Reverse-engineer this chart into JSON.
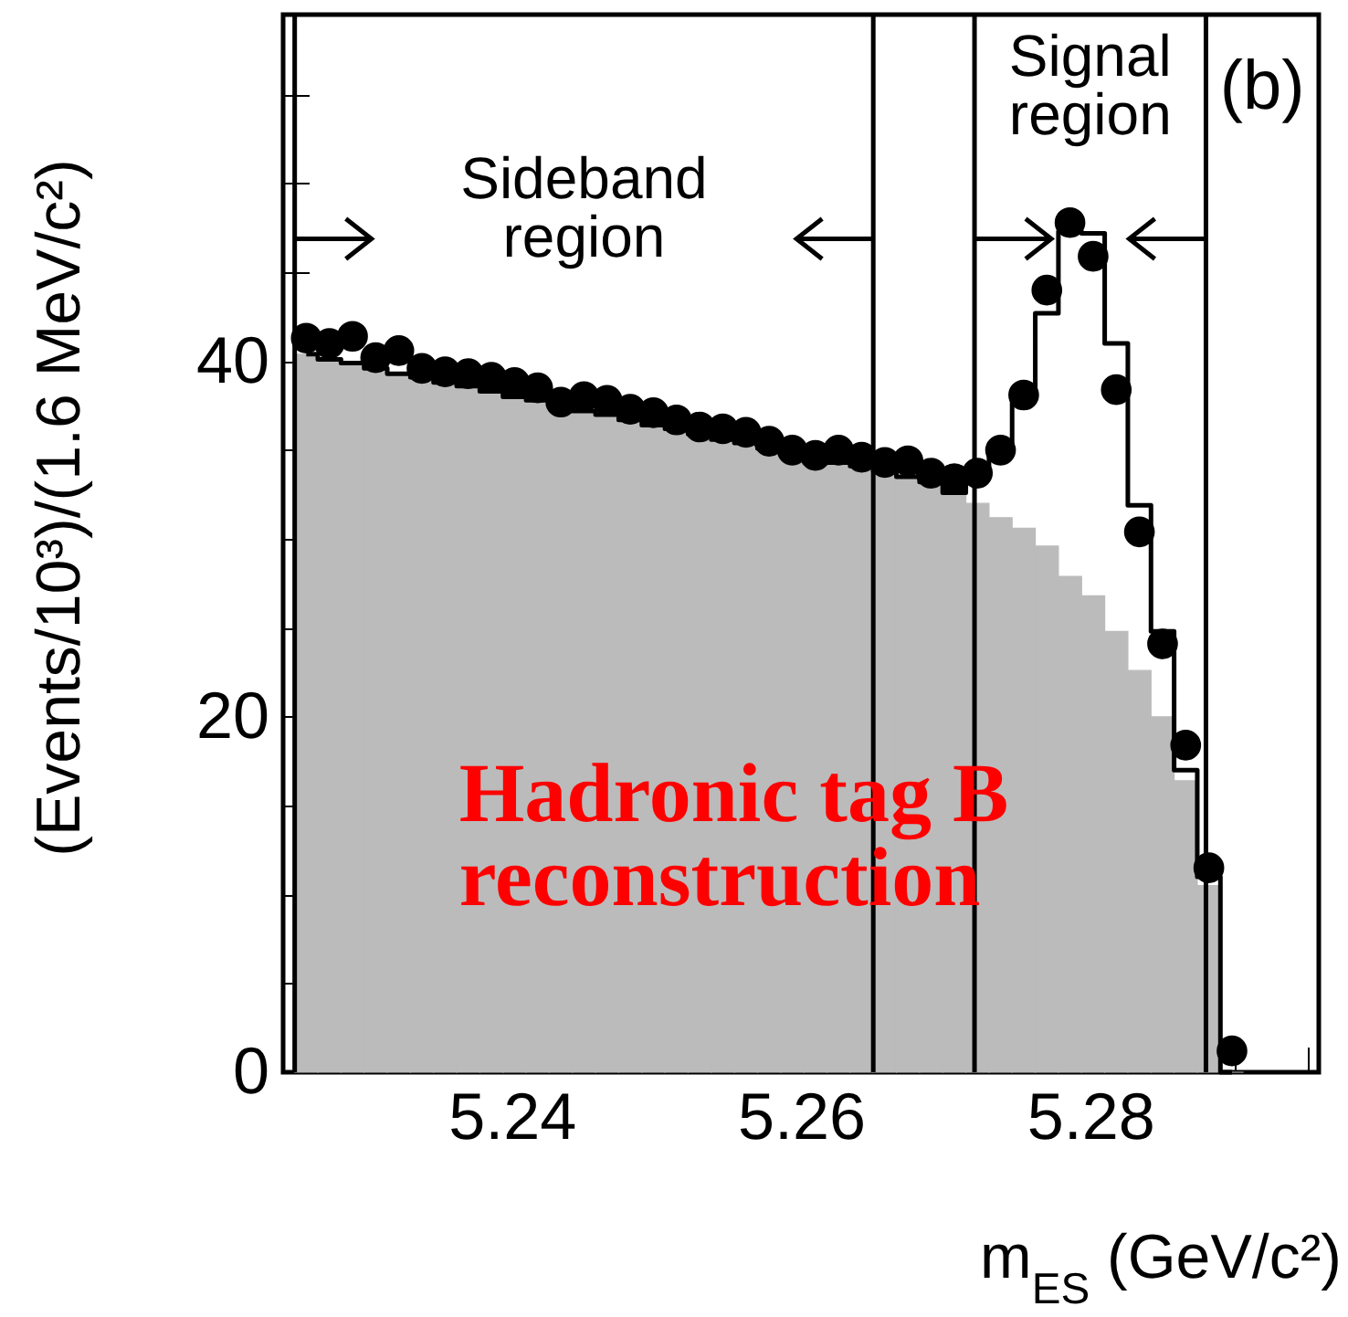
{
  "chart_data": {
    "type": "histogram",
    "xlabel": "m$_{ES}$ (GeV/c²)",
    "ylabel": "(Events/10³)/(1.6 MeV/c²)",
    "xlim": [
      5.2242,
      5.2958
    ],
    "ylim": [
      0,
      59.5
    ],
    "xticks": [
      {
        "value": 5.23,
        "label": null
      },
      {
        "value": 5.235,
        "label": null
      },
      5.24,
      {
        "value": 5.245,
        "label": null
      },
      {
        "value": 5.25,
        "label": null
      },
      {
        "value": 5.255,
        "label": null
      },
      5.26,
      {
        "value": 5.265,
        "label": null
      },
      {
        "value": 5.27,
        "label": null
      },
      {
        "value": 5.275,
        "label": null
      },
      5.28,
      {
        "value": 5.285,
        "label": null
      },
      {
        "value": 5.29,
        "label": null
      },
      {
        "value": 5.295,
        "label": null
      }
    ],
    "yticks": [
      0,
      {
        "value": 5,
        "label": null
      },
      {
        "value": 10,
        "label": null
      },
      {
        "value": 15,
        "label": null
      },
      20,
      {
        "value": 25,
        "label": null
      },
      {
        "value": 30,
        "label": null
      },
      {
        "value": 35,
        "label": null
      },
      40,
      {
        "value": 45,
        "label": null
      },
      {
        "value": 50,
        "label": null
      },
      {
        "value": 55,
        "label": null
      }
    ],
    "bins": [
      5.225,
      5.2266,
      5.2282,
      5.2298,
      5.2314,
      5.233,
      5.2346,
      5.2362,
      5.2378,
      5.2394,
      5.241,
      5.2426,
      5.2442,
      5.2458,
      5.2474,
      5.249,
      5.2506,
      5.2522,
      5.2538,
      5.2554,
      5.257,
      5.2586,
      5.2602,
      5.2618,
      5.2634,
      5.265,
      5.2666,
      5.2682,
      5.2698,
      5.2714,
      5.273,
      5.2746,
      5.2762,
      5.2778,
      5.2794,
      5.281,
      5.2826,
      5.2842,
      5.2858,
      5.2874,
      5.289,
      5.2906
    ],
    "series": [
      {
        "color": "#bbbbbb",
        "values": [
          40.4,
          40.1,
          39.9,
          39.6,
          39.3,
          39.1,
          38.8,
          38.6,
          38.3,
          38.0,
          37.8,
          37.5,
          37.2,
          37.0,
          36.7,
          36.4,
          36.2,
          35.9,
          35.6,
          35.4,
          35.1,
          34.9,
          34.6,
          34.3,
          34.1,
          33.8,
          33.5,
          33.2,
          32.6,
          32.0,
          31.2,
          30.6,
          29.6,
          27.9,
          26.8,
          24.8,
          22.6,
          20.0,
          16.4,
          10.5,
          0
        ]
      },
      {
        "type": "step",
        "color": "#000000",
        "x": [
          5.2258,
          5.2274,
          5.229,
          5.2306,
          5.2322,
          5.2338,
          5.2354,
          5.237,
          5.2386,
          5.2402,
          5.2418,
          5.2434,
          5.245,
          5.2466,
          5.2482,
          5.2498,
          5.2514,
          5.253,
          5.2546,
          5.2562,
          5.2578,
          5.2594,
          5.261,
          5.2626,
          5.2642,
          5.2658,
          5.2674,
          5.269,
          5.2706,
          5.2722,
          5.2738,
          5.2754,
          5.277,
          5.2786,
          5.2802,
          5.2818,
          5.2834,
          5.285,
          5.2866,
          5.2882,
          5.2898
        ],
        "values": [
          40.4,
          40.1,
          39.9,
          39.6,
          39.3,
          39.1,
          38.8,
          38.6,
          38.3,
          38.0,
          37.8,
          37.5,
          37.2,
          37.0,
          36.7,
          36.4,
          36.2,
          35.9,
          35.6,
          35.4,
          35.1,
          34.9,
          34.6,
          34.3,
          34.1,
          33.8,
          33.5,
          33.2,
          32.6,
          33.8,
          35.0,
          37.9,
          42.7,
          47.3,
          47.2,
          41.0,
          31.9,
          24.8,
          17.0,
          11.0,
          0
        ]
      },
      {
        "type": "scatter",
        "marker": "circle",
        "color": "#000000",
        "x": [
          5.2258,
          5.2274,
          5.229,
          5.2306,
          5.2322,
          5.2338,
          5.2354,
          5.237,
          5.2386,
          5.2402,
          5.2418,
          5.2434,
          5.245,
          5.2466,
          5.2482,
          5.2498,
          5.2514,
          5.253,
          5.2546,
          5.2562,
          5.2578,
          5.2594,
          5.261,
          5.2626,
          5.2642,
          5.2658,
          5.2674,
          5.269,
          5.2706,
          5.2722,
          5.2738,
          5.2754,
          5.277,
          5.2786,
          5.2802,
          5.2818,
          5.2834,
          5.285,
          5.2866,
          5.2882,
          5.2898
        ],
        "values": [
          41.3,
          41.0,
          41.4,
          40.2,
          40.6,
          39.6,
          39.4,
          39.3,
          39.1,
          38.8,
          38.5,
          37.7,
          38.0,
          37.8,
          37.3,
          37.1,
          36.7,
          36.3,
          36.2,
          36.0,
          35.5,
          35.0,
          34.7,
          35.0,
          34.6,
          34.3,
          34.4,
          33.7,
          33.4,
          33.7,
          35.0,
          38.1,
          44.0,
          47.8,
          45.9,
          38.4,
          30.4,
          24.1,
          18.4,
          11.5,
          1.2
        ]
      }
    ],
    "ref_lines": [
      {
        "axis": "x",
        "value": 5.225,
        "color": "#000000"
      },
      {
        "axis": "x",
        "value": 5.265,
        "color": "#000000"
      },
      {
        "axis": "x",
        "value": 5.272,
        "color": "#000000"
      },
      {
        "axis": "x",
        "value": 5.288,
        "color": "#000000"
      }
    ],
    "annotations": [
      "Sideband region",
      "Signal region",
      "(b)",
      "Hadronic tag B reconstruction"
    ],
    "grid": false
  }
}
